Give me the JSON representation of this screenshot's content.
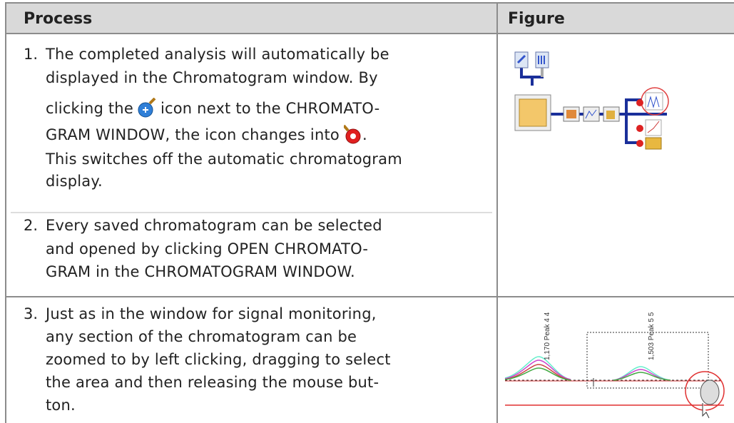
{
  "table": {
    "header": [
      "Process",
      "Figure"
    ],
    "rows": [
      {
        "steps": [
          {
            "number": "1.",
            "lines": [
              [
                "The completed analysis will automatically be"
              ],
              [
                "displayed in the Chromatogram window. By"
              ],
              [
                "clicking the",
                "icon next to the CHROMATO-"
              ],
              [
                "GRAM WINDOW, the icon changes into",
                "."
              ],
              [
                "This switches off the automatic chromatogram"
              ],
              [
                "display."
              ]
            ]
          },
          {
            "number": "2.",
            "lines": [
              [
                "Every saved chromatogram can be selected"
              ],
              [
                "and opened by clicking OPEN CHROMATO-"
              ],
              [
                "GRAM in the CHROMATOGRAM WINDOW."
              ]
            ]
          }
        ]
      },
      {
        "steps": [
          {
            "number": "3.",
            "lines": [
              [
                "Just as in the window for signal monitoring,"
              ],
              [
                "any section of the chromatogram can be"
              ],
              [
                "zoomed to by left clicking, dragging to select"
              ],
              [
                "the area and then releasing the mouse but-"
              ],
              [
                "ton."
              ]
            ]
          }
        ],
        "figure_labels": [
          "1,170 Peak 4 4",
          "1,503 Peak 5 5"
        ]
      }
    ]
  }
}
